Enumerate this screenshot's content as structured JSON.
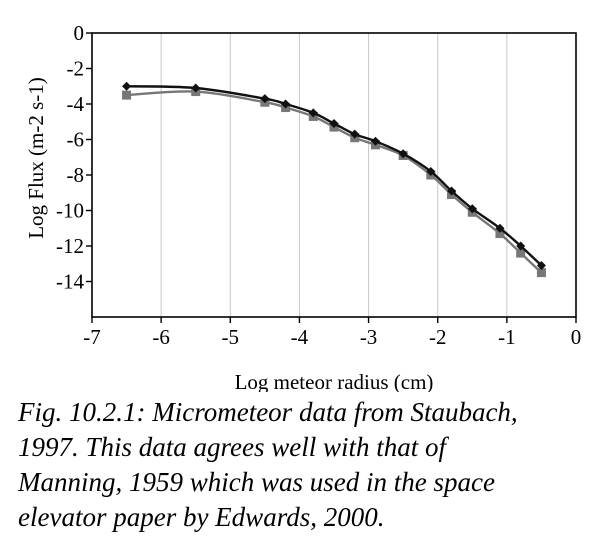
{
  "chart_data": {
    "type": "line",
    "title": "",
    "xlabel": "Log meteor radius (cm)",
    "ylabel": "Log Flux (m-2 s-1)",
    "xlim": [
      -7,
      0
    ],
    "ylim": [
      -16,
      0
    ],
    "x_ticks": [
      "-7",
      "-6",
      "-5",
      "-4",
      "-3",
      "-2",
      "-1",
      "0"
    ],
    "y_ticks": [
      "0",
      "-2",
      "-4",
      "-6",
      "-8",
      "-10",
      "-12",
      "-14"
    ],
    "grid": "vertical",
    "legend": "none",
    "series": [
      {
        "color": "#111111",
        "marker": "diamond",
        "x": [
          -6.5,
          -5.5,
          -4.5,
          -4.2,
          -3.8,
          -3.5,
          -3.2,
          -2.9,
          -2.5,
          -2.1,
          -1.8,
          -1.5,
          -1.1,
          -0.8,
          -0.5
        ],
        "y": [
          -3.0,
          -3.1,
          -3.7,
          -4.0,
          -4.5,
          -5.1,
          -5.7,
          -6.1,
          -6.8,
          -7.8,
          -8.9,
          -9.9,
          -11.0,
          -12.0,
          -13.1
        ]
      },
      {
        "color": "#777777",
        "marker": "square",
        "x": [
          -6.5,
          -5.5,
          -4.5,
          -4.2,
          -3.8,
          -3.5,
          -3.2,
          -2.9,
          -2.5,
          -2.1,
          -1.8,
          -1.5,
          -1.1,
          -0.8,
          -0.5
        ],
        "y": [
          -3.5,
          -3.3,
          -3.9,
          -4.2,
          -4.7,
          -5.3,
          -5.9,
          -6.3,
          -6.9,
          -8.0,
          -9.1,
          -10.1,
          -11.3,
          -12.4,
          -13.5
        ]
      }
    ]
  },
  "caption": {
    "lines": [
      "Fig. 10.2.1: Micrometeor data from Staubach,",
      "1997.  This data agrees well with that of",
      "Manning, 1959 which was used in the space",
      "elevator paper by Edwards, 2000."
    ]
  }
}
